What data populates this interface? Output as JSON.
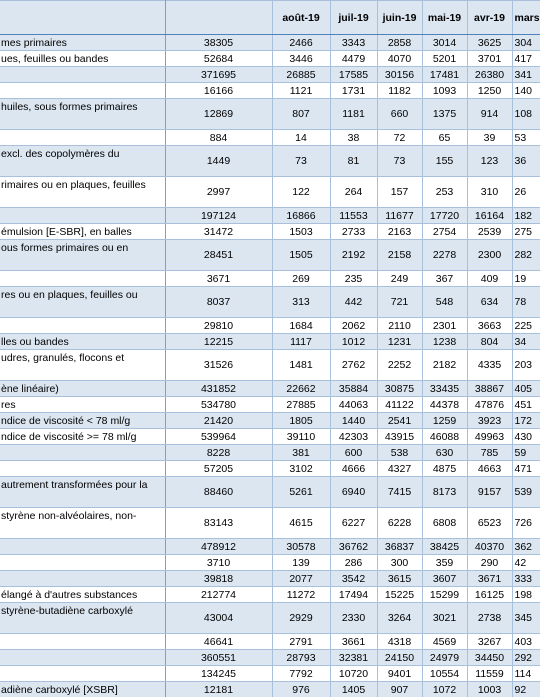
{
  "table": {
    "months": [
      "août-19",
      "juil-19",
      "juin-19",
      "mai-19",
      "avr-19",
      "mars"
    ],
    "rows": [
      {
        "label": "mes primaires",
        "total": 38305,
        "values": [
          2466,
          3343,
          2858,
          3014,
          3625,
          304
        ]
      },
      {
        "label": "ues, feuilles ou bandes",
        "total": 52684,
        "values": [
          3446,
          4479,
          4070,
          5201,
          3701,
          417
        ]
      },
      {
        "label": null,
        "total": 371695,
        "values": [
          26885,
          17585,
          30156,
          17481,
          26380,
          341
        ]
      },
      {
        "label": null,
        "total": 16166,
        "values": [
          1121,
          1731,
          1182,
          1093,
          1250,
          140
        ]
      },
      {
        "label": "huiles, sous formes primaires",
        "total": 12869,
        "values": [
          807,
          1181,
          660,
          1375,
          914,
          108
        ]
      },
      {
        "label": null,
        "total": 884,
        "values": [
          14,
          38,
          72,
          65,
          39,
          53
        ]
      },
      {
        "label": "excl. des copolymères du",
        "total": 1449,
        "values": [
          73,
          81,
          73,
          155,
          123,
          36
        ]
      },
      {
        "label": "rimaires ou en plaques, feuilles",
        "total": 2997,
        "values": [
          122,
          264,
          157,
          253,
          310,
          26
        ]
      },
      {
        "label": null,
        "total": 197124,
        "values": [
          16866,
          11553,
          11677,
          17720,
          16164,
          182
        ]
      },
      {
        "label": "émulsion [E-SBR], en balles",
        "total": 31472,
        "values": [
          1503,
          2733,
          2163,
          2754,
          2539,
          275
        ]
      },
      {
        "label": "ous formes primaires ou en",
        "total": 28451,
        "values": [
          1505,
          2192,
          2158,
          2278,
          2300,
          282
        ]
      },
      {
        "label": null,
        "total": 3671,
        "values": [
          269,
          235,
          249,
          367,
          409,
          19
        ]
      },
      {
        "label": "res ou en plaques, feuilles ou",
        "total": 8037,
        "values": [
          313,
          442,
          721,
          548,
          634,
          78
        ]
      },
      {
        "label": null,
        "total": 29810,
        "values": [
          1684,
          2062,
          2110,
          2301,
          3663,
          225
        ]
      },
      {
        "label": "lles ou bandes",
        "total": 12215,
        "values": [
          1117,
          1012,
          1231,
          1238,
          804,
          34
        ]
      },
      {
        "label": "udres, granulés, flocons et",
        "total": 31526,
        "values": [
          1481,
          2762,
          2252,
          2182,
          4335,
          203
        ]
      },
      {
        "label": "ène linéaire)",
        "total": 431852,
        "values": [
          22662,
          35884,
          30875,
          33435,
          38867,
          405
        ]
      },
      {
        "label": "res",
        "total": 534780,
        "values": [
          27885,
          44063,
          41122,
          44378,
          47876,
          451
        ]
      },
      {
        "label": "ndice de viscosité < 78 ml/g",
        "total": 21420,
        "values": [
          1805,
          1440,
          2541,
          1259,
          3923,
          172
        ]
      },
      {
        "label": "ndice de viscosité >= 78 ml/g",
        "total": 539964,
        "values": [
          39110,
          42303,
          43915,
          46088,
          49963,
          430
        ]
      },
      {
        "label": null,
        "total": 8228,
        "values": [
          381,
          600,
          538,
          630,
          785,
          59
        ]
      },
      {
        "label": null,
        "total": 57205,
        "values": [
          3102,
          4666,
          4327,
          4875,
          4663,
          471
        ]
      },
      {
        "label": "autrement transformées pour la",
        "total": 88460,
        "values": [
          5261,
          6940,
          7415,
          8173,
          9157,
          539
        ]
      },
      {
        "label": "styrène non-alvéolaires, non-",
        "total": 83143,
        "values": [
          4615,
          6227,
          6228,
          6808,
          6523,
          726
        ]
      },
      {
        "label": null,
        "total": 478912,
        "values": [
          30578,
          36762,
          36837,
          38425,
          40370,
          362
        ]
      },
      {
        "label": null,
        "total": 3710,
        "values": [
          139,
          286,
          300,
          359,
          290,
          42
        ]
      },
      {
        "label": null,
        "total": 39818,
        "values": [
          2077,
          3542,
          3615,
          3607,
          3671,
          333
        ]
      },
      {
        "label": "élangé à d'autres substances",
        "total": 212774,
        "values": [
          11272,
          17494,
          15225,
          15299,
          16125,
          198
        ]
      },
      {
        "label": "styrène-butadiène carboxylé",
        "total": 43004,
        "values": [
          2929,
          2330,
          3264,
          3021,
          2738,
          345
        ]
      },
      {
        "label": null,
        "total": 46641,
        "values": [
          2791,
          3661,
          4318,
          4569,
          3267,
          403
        ]
      },
      {
        "label": null,
        "total": 360551,
        "values": [
          28793,
          32381,
          24150,
          24979,
          34450,
          292
        ]
      },
      {
        "label": null,
        "total": 134245,
        "values": [
          7792,
          10720,
          9401,
          10554,
          11559,
          114
        ]
      },
      {
        "label": "adiène carboxylé [XSBR]",
        "total": 12181,
        "values": [
          976,
          1405,
          907,
          1072,
          1003,
          92
        ]
      }
    ]
  }
}
